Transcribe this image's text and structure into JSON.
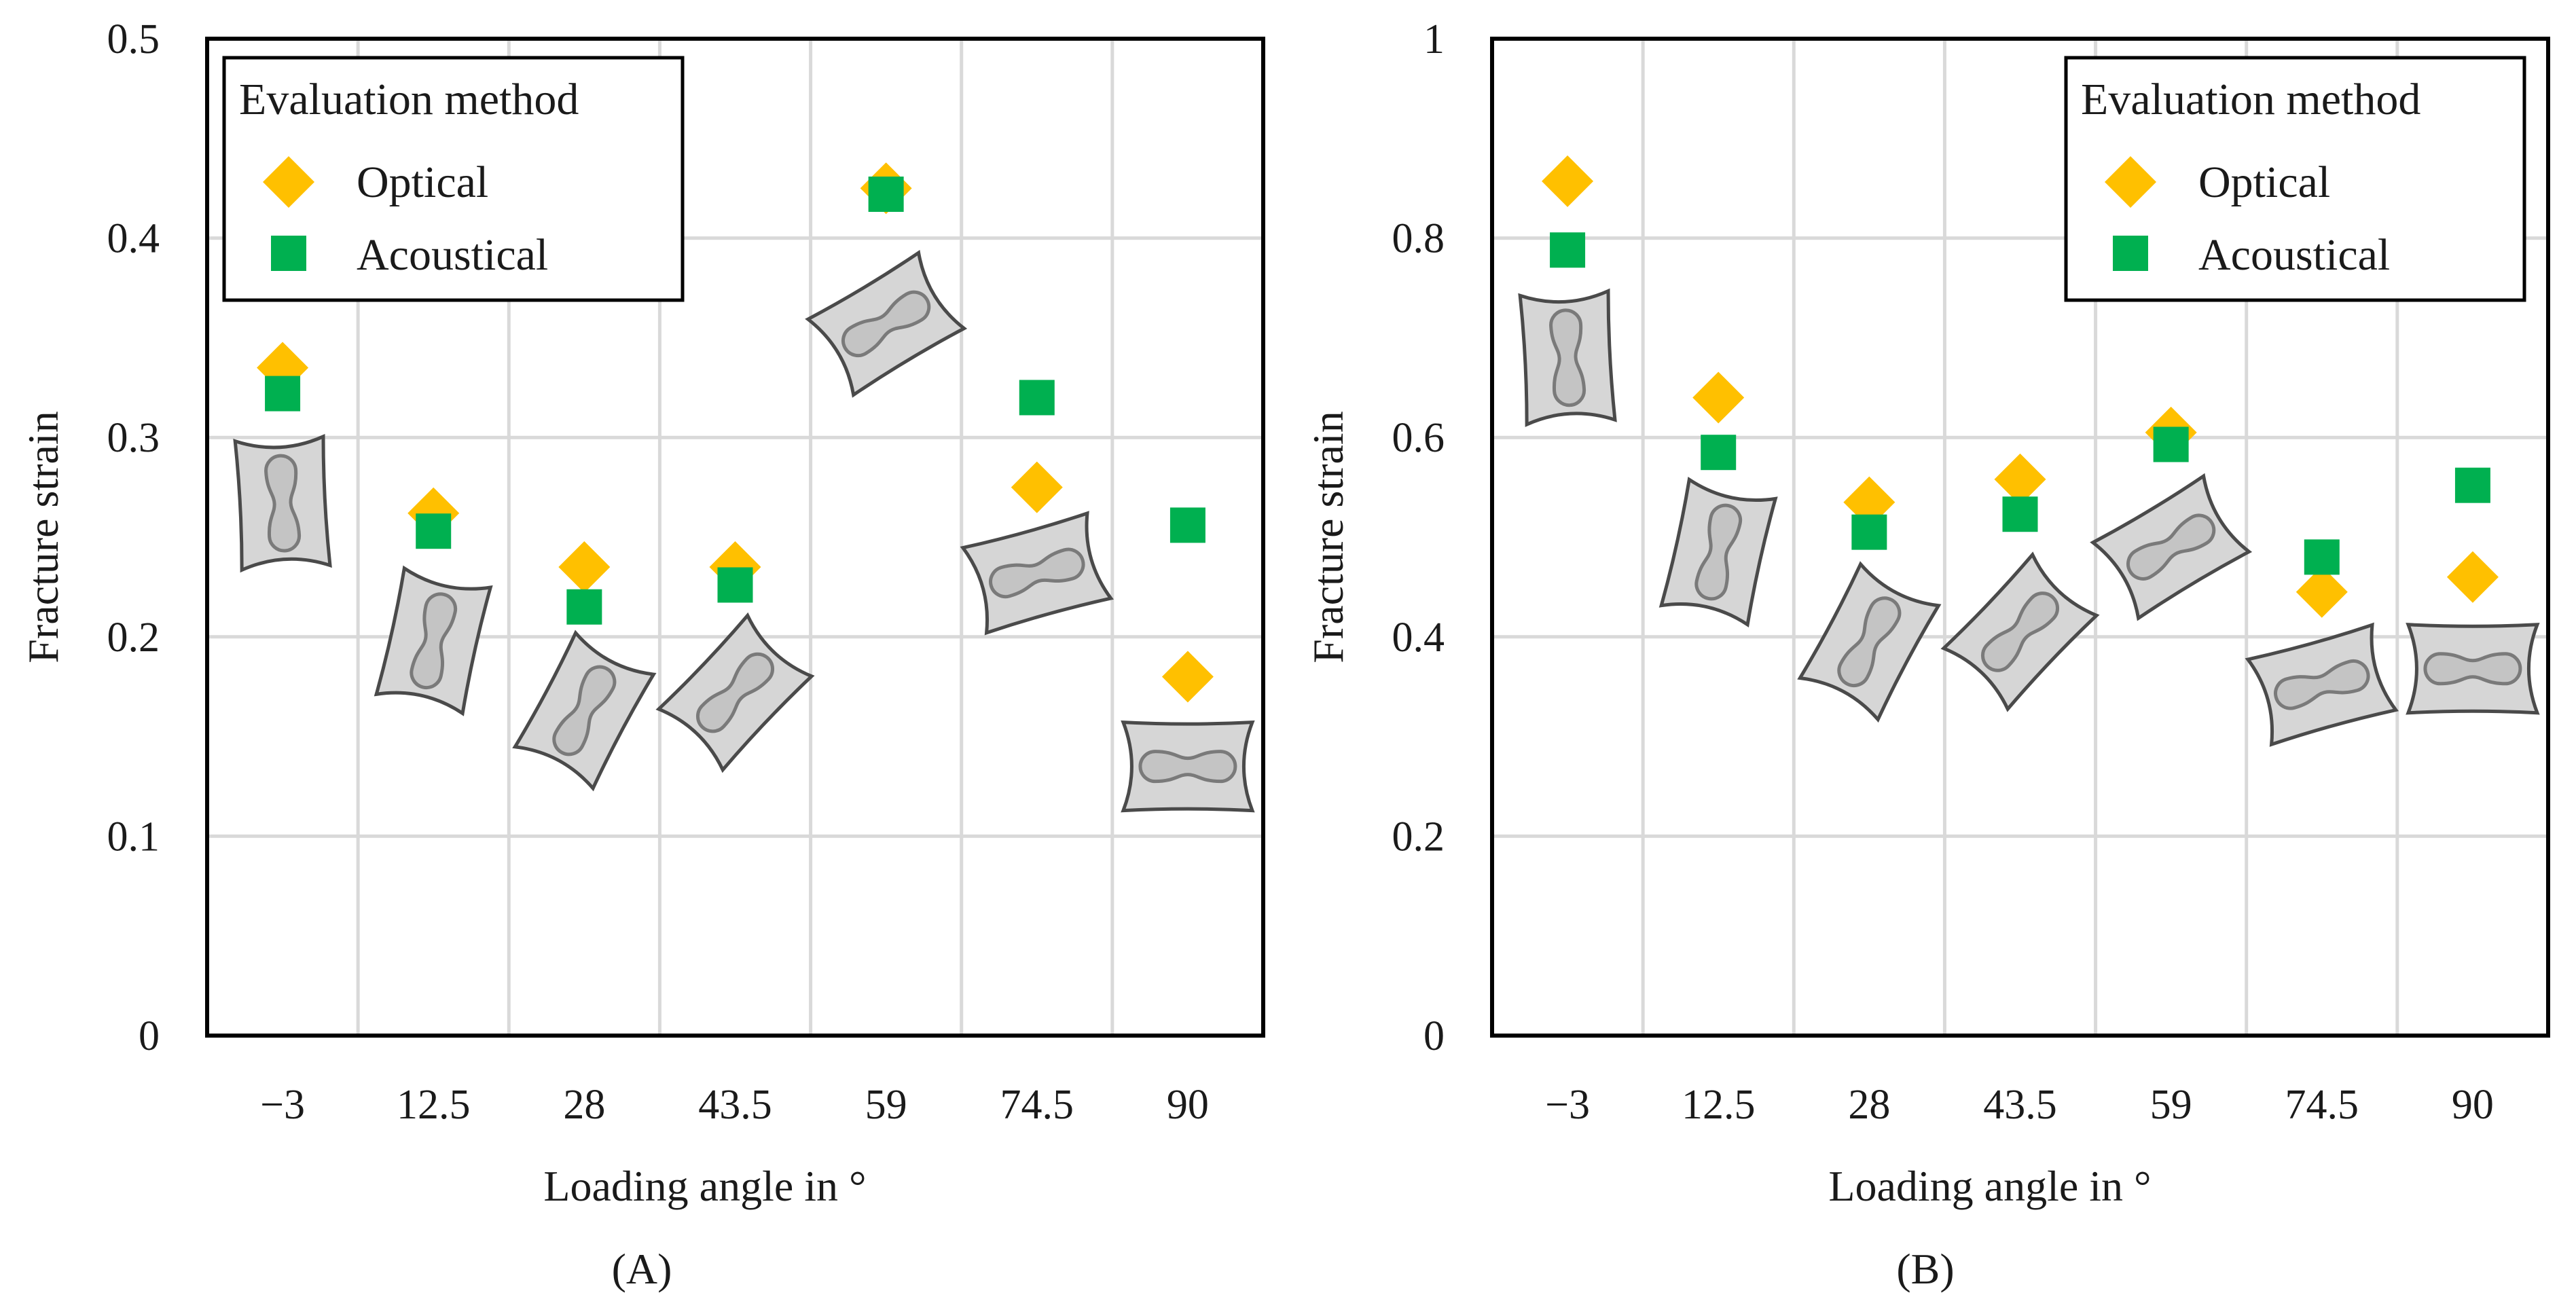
{
  "colors": {
    "optical": "#ffc000",
    "acoustical": "#00b050",
    "grid": "#d9d9d9",
    "axis": "#000000",
    "specimen_fill": "#d6d6d6",
    "specimen_edge": "#4a4a4a"
  },
  "icons": [
    "diamond-marker-icon",
    "square-marker-icon",
    "specimen-icon"
  ],
  "chart_data": [
    {
      "type": "scatter",
      "panel_label": "(A)",
      "xlabel": "Loading angle in °",
      "ylabel": "Fracture strain",
      "categories": [
        "−3",
        "12.5",
        "28",
        "43.5",
        "59",
        "74.5",
        "90"
      ],
      "ylim": [
        0,
        0.5
      ],
      "yticks": [
        0,
        0.1,
        0.2,
        0.3,
        0.4,
        0.5
      ],
      "ytick_labels": [
        "0",
        "0.1",
        "0.2",
        "0.3",
        "0.4",
        "0.5"
      ],
      "grid": true,
      "legend": {
        "title": "Evaluation method",
        "position": "top-left",
        "entries": [
          "Optical",
          "Acoustical"
        ]
      },
      "series": [
        {
          "name": "Optical",
          "marker": "diamond",
          "values": [
            0.335,
            0.262,
            0.235,
            0.235,
            0.425,
            0.275,
            0.18
          ]
        },
        {
          "name": "Acoustical",
          "marker": "square",
          "values": [
            0.322,
            0.253,
            0.215,
            0.226,
            0.422,
            0.32,
            0.256
          ]
        }
      ],
      "specimen_icons": [
        {
          "category": "−3",
          "center_y": 0.267,
          "rotation_deg": -3
        },
        {
          "category": "12.5",
          "center_y": 0.198,
          "rotation_deg": 12.5
        },
        {
          "category": "28",
          "center_y": 0.163,
          "rotation_deg": 28
        },
        {
          "category": "43.5",
          "center_y": 0.172,
          "rotation_deg": 43.5
        },
        {
          "category": "59",
          "center_y": 0.357,
          "rotation_deg": 59
        },
        {
          "category": "74.5",
          "center_y": 0.232,
          "rotation_deg": 74.5
        },
        {
          "category": "90",
          "center_y": 0.135,
          "rotation_deg": 90
        }
      ]
    },
    {
      "type": "scatter",
      "panel_label": "(B)",
      "xlabel": "Loading angle in °",
      "ylabel": "Fracture strain",
      "categories": [
        "−3",
        "12.5",
        "28",
        "43.5",
        "59",
        "74.5",
        "90"
      ],
      "ylim": [
        0,
        1
      ],
      "yticks": [
        0,
        0.2,
        0.4,
        0.6,
        0.8,
        1
      ],
      "ytick_labels": [
        "0",
        "0.2",
        "0.4",
        "0.6",
        "0.8",
        "1"
      ],
      "grid": true,
      "legend": {
        "title": "Evaluation method",
        "position": "top-right",
        "entries": [
          "Optical",
          "Acoustical"
        ]
      },
      "series": [
        {
          "name": "Optical",
          "marker": "diamond",
          "values": [
            0.857,
            0.64,
            0.535,
            0.558,
            0.605,
            0.445,
            0.46
          ]
        },
        {
          "name": "Acoustical",
          "marker": "square",
          "values": [
            0.788,
            0.585,
            0.505,
            0.523,
            0.593,
            0.48,
            0.552
          ]
        }
      ],
      "specimen_icons": [
        {
          "category": "−3",
          "center_y": 0.68,
          "rotation_deg": -3
        },
        {
          "category": "12.5",
          "center_y": 0.485,
          "rotation_deg": 12.5
        },
        {
          "category": "28",
          "center_y": 0.395,
          "rotation_deg": 28
        },
        {
          "category": "43.5",
          "center_y": 0.405,
          "rotation_deg": 43.5
        },
        {
          "category": "59",
          "center_y": 0.49,
          "rotation_deg": 59
        },
        {
          "category": "74.5",
          "center_y": 0.352,
          "rotation_deg": 74.5
        },
        {
          "category": "90",
          "center_y": 0.368,
          "rotation_deg": 90
        }
      ]
    }
  ]
}
